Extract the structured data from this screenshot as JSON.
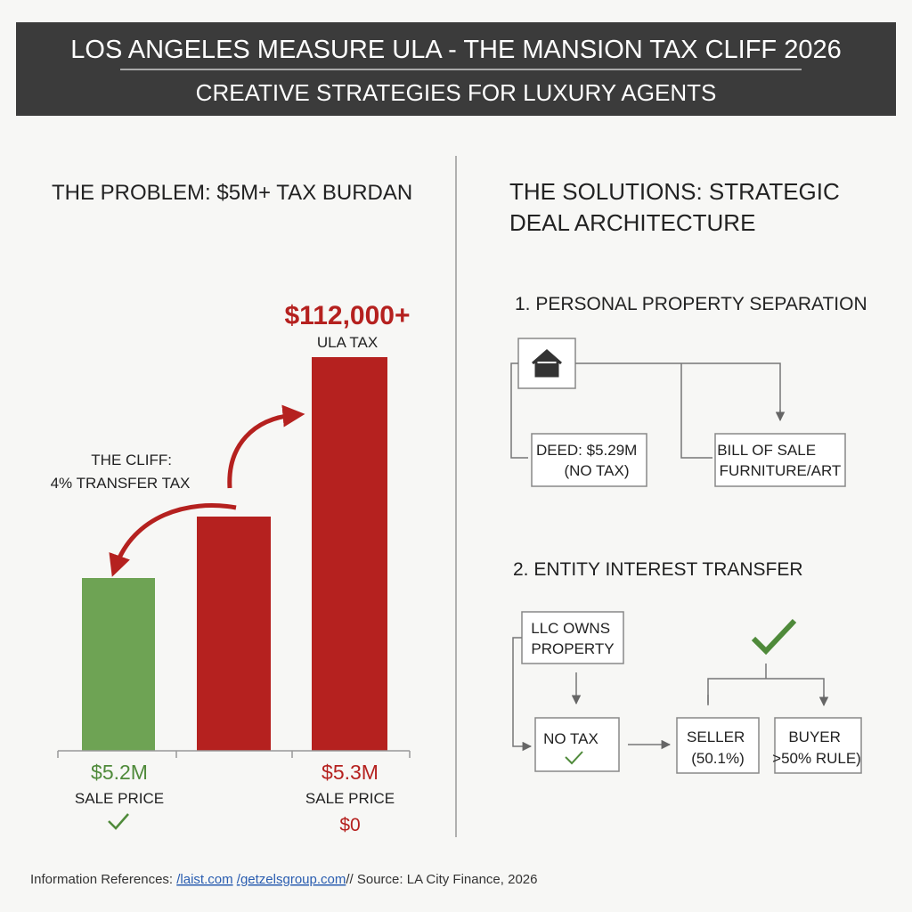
{
  "header": {
    "title": "LOS ANGELES MEASURE ULA - THE MANSION TAX CLIFF 2026",
    "subtitle": "CREATIVE STRATEGIES FOR LUXURY AGENTS"
  },
  "problem": {
    "heading": "THE PROBLEM: $5M+ TAX BURDAN",
    "tax_amount": "$112,000+",
    "tax_label": "ULA TAX",
    "cliff_label": [
      "THE CLIFF:",
      "4% TRANSFER TAX"
    ],
    "left_price": "$5.2M",
    "left_caption": "SALE PRICE",
    "right_price": "$5.3M",
    "right_caption": "SALE PRICE",
    "right_tax": "$0"
  },
  "solutions": {
    "heading": [
      "THE SOLUTIONS: STRATEGIC",
      "DEAL ARCHITECTURE"
    ],
    "strategy_1": {
      "title": "1. PERSONAL PROPERTY SEPARATION",
      "deed": [
        "DEED: $5.29M",
        "(NO TAX)"
      ],
      "bill": [
        "BILL OF SALE",
        "FURNITURE/ART"
      ]
    },
    "strategy_2": {
      "title": "2. ENTITY INTEREST TRANSFER",
      "llc": [
        "LLC OWNS",
        "PROPERTY"
      ],
      "no_tax": "NO TAX",
      "seller": [
        "SELLER",
        "(50.1%)"
      ],
      "buyer": [
        "BUYER",
        ">50% RULE)"
      ]
    }
  },
  "footer": {
    "label": "Information References:",
    "links": [
      "/laist.com",
      "/getzelsgroup.com"
    ],
    "source": "// Source: LA City Finance, 2026"
  }
}
